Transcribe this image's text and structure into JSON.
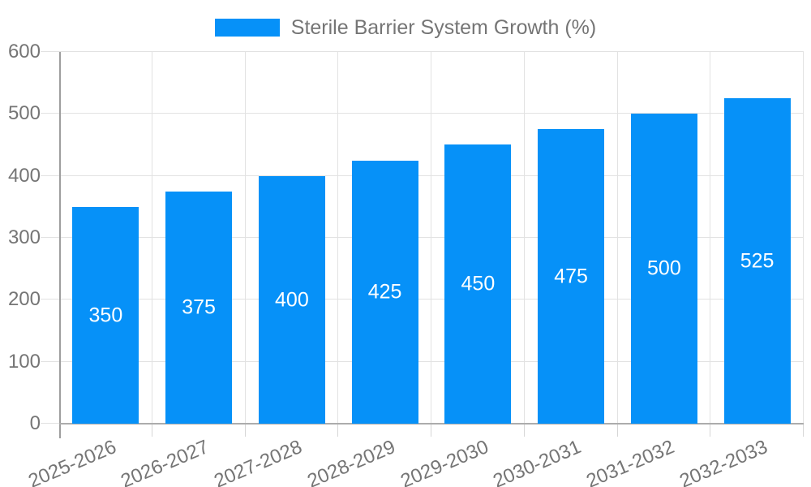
{
  "legend": {
    "label": "Sterile Barrier System Growth (%)"
  },
  "chart_data": {
    "type": "bar",
    "title": "",
    "legend_label": "Sterile Barrier System Growth (%)",
    "legend_position": "top",
    "categories": [
      "2025-2026",
      "2026-2027",
      "2027-2028",
      "2028-2029",
      "2029-2030",
      "2030-2031",
      "2031-2032",
      "2032-2033"
    ],
    "values": [
      350,
      375,
      400,
      425,
      450,
      475,
      500,
      525
    ],
    "bar_labels": [
      "350",
      "375",
      "400",
      "425",
      "450",
      "475",
      "500",
      "525"
    ],
    "xlabel": "",
    "ylabel": "",
    "ylim": [
      0,
      600
    ],
    "yticks": [
      0,
      100,
      200,
      300,
      400,
      500,
      600
    ],
    "grid": true,
    "x_label_rotation_deg": -23,
    "colors": {
      "bar": "#0691F8",
      "bar_label": "#FFFFFF",
      "axis_text": "#757575",
      "grid_line": "#E2E2E2",
      "minor_tick": "#D6D6D6",
      "y_axis_line": "#9E9E9E",
      "x_axis_line": "#ACACAC",
      "background": "#FFFFFF"
    }
  }
}
